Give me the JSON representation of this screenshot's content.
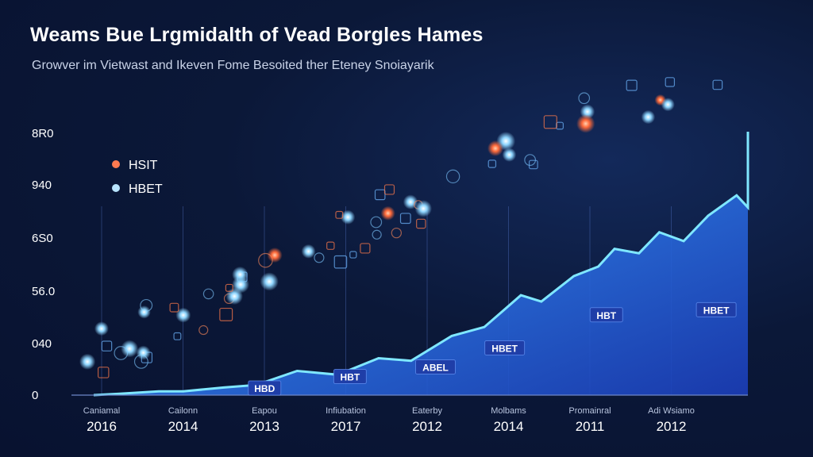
{
  "title": "Weams Bue Lrgmidalth of Vead Borgles Hames",
  "subtitle": "Growver im Vietwast and Ikeven Fome Besoited ther Eteney Snoiayarik",
  "chart_data": {
    "type": "area",
    "title": "Weams Bue Lrgmidalth of Vead Borgles Hames",
    "subtitle": "Growver im Vietwast and Ikeven Fome Besoited ther Eteney Snoiayarik",
    "xlabel": "",
    "ylabel": "",
    "y_ticks": [
      "0",
      "040",
      "56.0",
      "6S0",
      "940",
      "8R0"
    ],
    "categories": [
      {
        "label": "Caniamal",
        "year": "2016"
      },
      {
        "label": "Cailonn",
        "year": "2014"
      },
      {
        "label": "Eapou",
        "year": "2013"
      },
      {
        "label": "Infiubation",
        "year": "2017"
      },
      {
        "label": "Eaterby",
        "year": "2012"
      },
      {
        "label": "Molbams",
        "year": "2014"
      },
      {
        "label": "Promainral",
        "year": "2011"
      },
      {
        "label": "Adi Wsiamo",
        "year": "2012"
      }
    ],
    "series_levels": [
      [
        0,
        0.0
      ],
      [
        0.3,
        0.02
      ],
      [
        0.8,
        0.06
      ],
      [
        1.1,
        0.06
      ],
      [
        1.6,
        0.12
      ],
      [
        2.0,
        0.16
      ],
      [
        2.5,
        0.38
      ],
      [
        3.0,
        0.32
      ],
      [
        3.5,
        0.58
      ],
      [
        3.9,
        0.54
      ],
      [
        4.4,
        0.93
      ],
      [
        4.8,
        1.07
      ],
      [
        5.25,
        1.57
      ],
      [
        5.5,
        1.47
      ],
      [
        5.9,
        1.87
      ],
      [
        6.2,
        2.02
      ],
      [
        6.4,
        2.3
      ],
      [
        6.7,
        2.23
      ],
      [
        6.95,
        2.56
      ],
      [
        7.25,
        2.42
      ],
      [
        7.55,
        2.82
      ],
      [
        7.9,
        3.14
      ],
      [
        8.2,
        2.95
      ],
      [
        8.6,
        4.14
      ]
    ],
    "y_range": [
      0,
      5
    ],
    "legend": [
      {
        "name": "HSIT",
        "color": "#ff7a50"
      },
      {
        "name": "HBET",
        "color": "#b8e4ff"
      }
    ],
    "legend_position": "top-left",
    "annotations": [
      {
        "text": "HBD",
        "at": [
          2.1,
          0.1
        ]
      },
      {
        "text": "HBT",
        "at": [
          3.15,
          0.28
        ]
      },
      {
        "text": "ABEL",
        "at": [
          4.2,
          0.43
        ]
      },
      {
        "text": "HBET",
        "at": [
          5.05,
          0.73
        ]
      },
      {
        "text": "HBT",
        "at": [
          6.3,
          1.25
        ]
      },
      {
        "text": "HBET",
        "at": [
          7.65,
          1.33
        ]
      }
    ],
    "grid": "vertical lines at categories",
    "colors": {
      "line": "#7fe7ff",
      "fill_top": "#3fd3ff",
      "fill_bottom": "#1b3db8"
    }
  }
}
